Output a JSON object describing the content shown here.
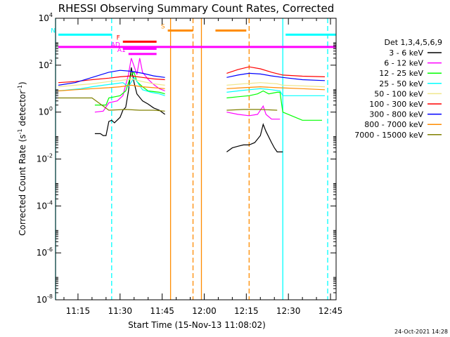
{
  "chart_data": {
    "type": "line",
    "title": "RHESSI Observing Summary Count Rates, Corrected",
    "xlabel": "Start Time (15-Nov-13 11:08:02)",
    "ylabel_prefix": "Corrected Count Rate (s",
    "ylabel_sup1": "-1",
    "ylabel_mid": " detector",
    "ylabel_sup2": "-1",
    "ylabel_suffix": ")",
    "x_scale": "time",
    "x_range": [
      "11:07",
      "12:47"
    ],
    "x_ticks": [
      "11:15",
      "11:30",
      "11:45",
      "12:00",
      "12:15",
      "12:30",
      "12:45"
    ],
    "y_scale": "log",
    "y_range": [
      1e-08,
      10000.0
    ],
    "y_ticks": [
      {
        "base": "10",
        "exp": "4"
      },
      {
        "base": "10",
        "exp": "2"
      },
      {
        "base": "10",
        "exp": "0"
      },
      {
        "base": "10",
        "exp": "-2"
      },
      {
        "base": "10",
        "exp": "-4"
      },
      {
        "base": "10",
        "exp": "-6"
      },
      {
        "base": "10",
        "exp": "-8"
      }
    ],
    "legend_title": "Det 1,3,4,5,6,9",
    "legend_position": "right",
    "series": [
      {
        "name": "3 - 6 keV",
        "color": "#000000",
        "segments": [
          [
            [
              "11:21",
              0.12
            ],
            [
              "11:23",
              0.12
            ],
            [
              "11:24",
              0.1
            ],
            [
              "11:25",
              0.1
            ],
            [
              "11:26",
              0.4
            ],
            [
              "11:27",
              0.45
            ],
            [
              "11:28",
              0.35
            ],
            [
              "11:30",
              0.6
            ],
            [
              "11:31",
              1.2
            ],
            [
              "11:32",
              1.6
            ],
            [
              "11:33",
              8
            ],
            [
              "11:34",
              80
            ],
            [
              "11:35",
              18
            ],
            [
              "11:36",
              6
            ],
            [
              "11:38",
              3
            ],
            [
              "11:40",
              2.2
            ],
            [
              "11:42",
              1.5
            ],
            [
              "11:44",
              1.2
            ],
            [
              "11:46",
              0.8
            ]
          ],
          [
            [
              "12:08",
              0.02
            ],
            [
              "12:10",
              0.03
            ],
            [
              "12:12",
              0.035
            ],
            [
              "12:14",
              0.04
            ],
            [
              "12:16",
              0.04
            ],
            [
              "12:18",
              0.05
            ],
            [
              "12:20",
              0.1
            ],
            [
              "12:21",
              0.3
            ],
            [
              "12:22",
              0.15
            ],
            [
              "12:24",
              0.05
            ],
            [
              "12:25",
              0.03
            ],
            [
              "12:26",
              0.02
            ],
            [
              "12:28",
              0.02
            ]
          ]
        ]
      },
      {
        "name": "6 - 12 keV",
        "color": "#ff00ff",
        "segments": [
          [
            [
              "11:21",
              1
            ],
            [
              "11:24",
              1.1
            ],
            [
              "11:26",
              2.5
            ],
            [
              "11:29",
              3
            ],
            [
              "11:31",
              5
            ],
            [
              "11:33",
              40
            ],
            [
              "11:34",
              200
            ],
            [
              "11:35",
              90
            ],
            [
              "11:36",
              40
            ],
            [
              "11:37",
              200
            ],
            [
              "11:38",
              50
            ],
            [
              "11:40",
              25
            ],
            [
              "11:42",
              15
            ],
            [
              "11:44",
              10
            ],
            [
              "11:46",
              8
            ]
          ],
          [
            [
              "12:08",
              1
            ],
            [
              "12:12",
              0.8
            ],
            [
              "12:16",
              0.7
            ],
            [
              "12:19",
              0.8
            ],
            [
              "12:21",
              1.8
            ],
            [
              "12:22",
              0.8
            ],
            [
              "12:24",
              0.5
            ],
            [
              "12:26",
              0.5
            ],
            [
              "12:27",
              0.5
            ]
          ]
        ]
      },
      {
        "name": "12 - 25 keV",
        "color": "#00ff00",
        "segments": [
          [
            [
              "11:21",
              2
            ],
            [
              "11:25",
              2
            ],
            [
              "11:26",
              4
            ],
            [
              "11:30",
              5
            ],
            [
              "11:32",
              8
            ],
            [
              "11:34",
              40
            ],
            [
              "11:35",
              50
            ],
            [
              "11:36",
              20
            ],
            [
              "11:38",
              12
            ],
            [
              "11:40",
              8
            ],
            [
              "11:44",
              7
            ],
            [
              "11:46",
              6
            ]
          ],
          [
            [
              "12:08",
              4
            ],
            [
              "12:12",
              4.5
            ],
            [
              "12:16",
              5
            ],
            [
              "12:19",
              6
            ],
            [
              "12:21",
              8
            ],
            [
              "12:23",
              6
            ],
            [
              "12:26",
              7
            ],
            [
              "12:27",
              7
            ],
            [
              "12:28",
              1
            ],
            [
              "12:35",
              0.45
            ],
            [
              "12:42",
              0.45
            ]
          ]
        ]
      },
      {
        "name": "25 - 50 keV",
        "color": "#00ffff",
        "segments": [
          [
            [
              "11:08",
              8
            ],
            [
              "11:12",
              9
            ],
            [
              "11:16",
              10
            ],
            [
              "11:20",
              12
            ],
            [
              "11:24",
              14
            ],
            [
              "11:28",
              16
            ],
            [
              "11:31",
              18
            ],
            [
              "11:33",
              12
            ],
            [
              "11:35",
              30
            ],
            [
              "11:38",
              9
            ],
            [
              "11:41",
              7
            ],
            [
              "11:44",
              6
            ],
            [
              "11:46",
              5
            ]
          ],
          [
            [
              "12:08",
              7
            ],
            [
              "12:12",
              8
            ],
            [
              "12:16",
              9
            ],
            [
              "12:20",
              10
            ],
            [
              "12:24",
              9
            ],
            [
              "12:27",
              8
            ],
            [
              "12:28",
              5
            ],
            [
              "12:35",
              5
            ],
            [
              "12:43",
              5
            ]
          ]
        ]
      },
      {
        "name": "50 - 100 keV",
        "color": "#f0e68c",
        "segments": [
          [
            [
              "11:08",
              12
            ],
            [
              "11:14",
              14
            ],
            [
              "11:20",
              16
            ],
            [
              "11:26",
              20
            ],
            [
              "11:30",
              22
            ],
            [
              "11:34",
              26
            ],
            [
              "11:38",
              20
            ],
            [
              "11:42",
              16
            ],
            [
              "11:46",
              14
            ]
          ],
          [
            [
              "12:08",
              14
            ],
            [
              "12:14",
              16
            ],
            [
              "12:20",
              18
            ],
            [
              "12:26",
              16
            ],
            [
              "12:28",
              14
            ],
            [
              "12:35",
              13
            ],
            [
              "12:43",
              12
            ]
          ]
        ]
      },
      {
        "name": "100 - 300 keV",
        "color": "#ff0000",
        "segments": [
          [
            [
              "11:08",
              18
            ],
            [
              "11:14",
              20
            ],
            [
              "11:20",
              24
            ],
            [
              "11:26",
              28
            ],
            [
              "11:30",
              32
            ],
            [
              "11:34",
              35
            ],
            [
              "11:38",
              30
            ],
            [
              "11:42",
              26
            ],
            [
              "11:46",
              24
            ]
          ],
          [
            [
              "12:08",
              45
            ],
            [
              "12:12",
              65
            ],
            [
              "12:16",
              85
            ],
            [
              "12:20",
              70
            ],
            [
              "12:24",
              50
            ],
            [
              "12:28",
              38
            ],
            [
              "12:35",
              34
            ],
            [
              "12:43",
              32
            ]
          ]
        ]
      },
      {
        "name": "300 - 800 keV",
        "color": "#0000ff",
        "segments": [
          [
            [
              "11:08",
              14
            ],
            [
              "11:14",
              18
            ],
            [
              "11:20",
              30
            ],
            [
              "11:26",
              50
            ],
            [
              "11:30",
              60
            ],
            [
              "11:34",
              55
            ],
            [
              "11:38",
              45
            ],
            [
              "11:42",
              35
            ],
            [
              "11:46",
              30
            ]
          ],
          [
            [
              "12:08",
              30
            ],
            [
              "12:12",
              38
            ],
            [
              "12:16",
              45
            ],
            [
              "12:20",
              42
            ],
            [
              "12:24",
              35
            ],
            [
              "12:28",
              30
            ],
            [
              "12:35",
              24
            ],
            [
              "12:43",
              22
            ]
          ]
        ]
      },
      {
        "name": "800 - 7000 keV",
        "color": "#ff8c00",
        "segments": [
          [
            [
              "11:08",
              8
            ],
            [
              "11:14",
              9
            ],
            [
              "11:20",
              10
            ],
            [
              "11:26",
              11
            ],
            [
              "11:30",
              12
            ],
            [
              "11:34",
              14
            ],
            [
              "11:38",
              12
            ],
            [
              "11:42",
              11
            ],
            [
              "11:46",
              10
            ]
          ],
          [
            [
              "12:08",
              10
            ],
            [
              "12:14",
              11
            ],
            [
              "12:20",
              12
            ],
            [
              "12:26",
              11
            ],
            [
              "12:35",
              10
            ],
            [
              "12:43",
              9
            ]
          ]
        ]
      },
      {
        "name": "7000 - 15000 keV",
        "color": "#808000",
        "segments": [
          [
            [
              "11:08",
              4
            ],
            [
              "11:14",
              4
            ],
            [
              "11:20",
              4
            ],
            [
              "11:26",
              1.2
            ],
            [
              "11:32",
              1.3
            ],
            [
              "11:37",
              1.2
            ],
            [
              "11:42",
              1.2
            ],
            [
              "11:46",
              1.1
            ]
          ],
          [
            [
              "12:08",
              1.2
            ],
            [
              "12:14",
              1.3
            ],
            [
              "12:20",
              1.3
            ],
            [
              "12:26",
              1.2
            ]
          ]
        ]
      }
    ],
    "annotations": [
      {
        "label": "N",
        "color": "#00ffff",
        "segments": [
          [
            "11:08",
            "11:27"
          ],
          [
            "12:29",
            "12:47"
          ]
        ],
        "value": 2000
      },
      {
        "label": "S",
        "color": "#ff8c00",
        "segments": [
          [
            "11:47",
            "11:56"
          ],
          [
            "12:04",
            "12:15"
          ]
        ],
        "value": 3000
      },
      {
        "label": "F",
        "color": "#ff0000",
        "segments": [
          [
            "11:31",
            "11:43"
          ]
        ],
        "value": 1000
      },
      {
        "label": "AD",
        "color": "#ff00ff",
        "segments": [
          [
            "11:31",
            "11:43"
          ]
        ],
        "value": 500
      },
      {
        "label": "A1",
        "color": "#ff00ff",
        "segments": [
          [
            "11:33",
            "11:43"
          ]
        ],
        "value": 300
      }
    ],
    "flat_line": {
      "color": "#ff00ff",
      "value": 600,
      "x_range": [
        "11:08",
        "12:47"
      ]
    },
    "vlines": [
      {
        "time": "11:07",
        "color": "#00ffff",
        "style": "solid"
      },
      {
        "time": "11:27",
        "color": "#00ffff",
        "style": "dashed"
      },
      {
        "time": "11:48",
        "color": "#ff8c00",
        "style": "solid"
      },
      {
        "time": "11:56",
        "color": "#ff8c00",
        "style": "dashed"
      },
      {
        "time": "11:59",
        "color": "#ff8c00",
        "style": "solid"
      },
      {
        "time": "12:16",
        "color": "#ff8c00",
        "style": "dashed"
      },
      {
        "time": "12:28",
        "color": "#00ffff",
        "style": "solid"
      },
      {
        "time": "12:44",
        "color": "#00ffff",
        "style": "dashed"
      }
    ]
  },
  "footer": {
    "timestamp": "24-Oct-2021 14:28"
  }
}
